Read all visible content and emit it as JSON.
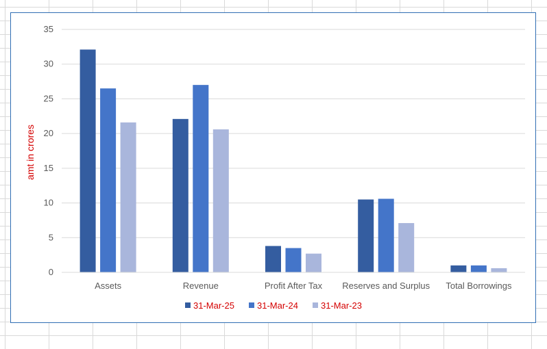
{
  "chart_data": {
    "type": "bar",
    "title": "",
    "xlabel": "",
    "ylabel": "amt in crores",
    "ylabel_color": "#d40000",
    "legend_color": "#d40000",
    "ylim": [
      0,
      35
    ],
    "yticks": [
      0,
      5,
      10,
      15,
      20,
      25,
      30,
      35
    ],
    "grid": true,
    "legend_position": "bottom",
    "categories": [
      "Assets",
      "Revenue",
      "Profit After Tax",
      "Reserves and Surplus",
      "Total Borrowings"
    ],
    "series": [
      {
        "name": "31-Mar-25",
        "color": "#345da0",
        "values": [
          32.1,
          22.1,
          3.8,
          10.5,
          1.0
        ]
      },
      {
        "name": "31-Mar-24",
        "color": "#4475c9",
        "values": [
          26.5,
          27.0,
          3.5,
          10.6,
          1.0
        ]
      },
      {
        "name": "31-Mar-23",
        "color": "#a9b6dc",
        "values": [
          21.6,
          20.6,
          2.7,
          7.1,
          0.6
        ]
      }
    ]
  }
}
